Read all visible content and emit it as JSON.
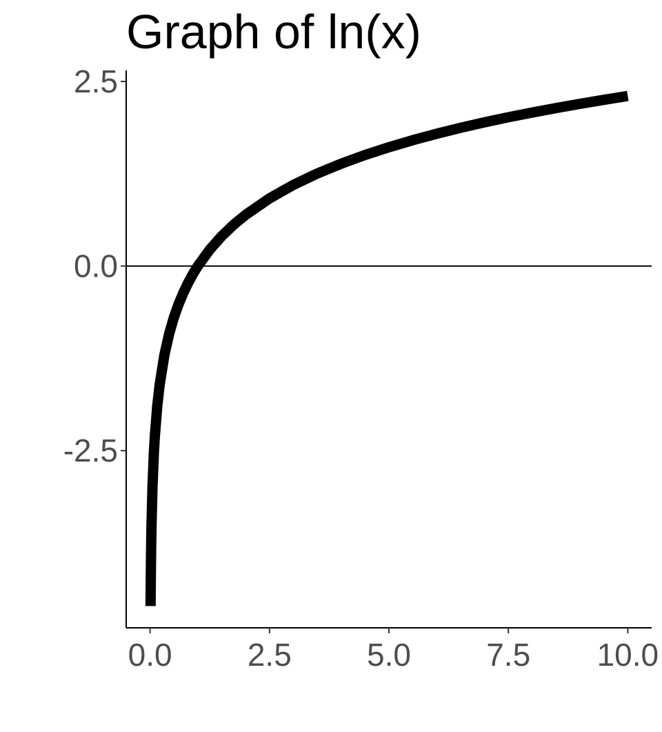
{
  "chart_data": {
    "type": "line",
    "title": "Graph of ln(x)",
    "xlabel": "",
    "ylabel": "",
    "xlim": [
      -0.5,
      10.5
    ],
    "ylim": [
      -4.9,
      2.65
    ],
    "x_ticks": [
      0.0,
      2.5,
      5.0,
      7.5,
      10.0
    ],
    "x_tick_labels": [
      "0.0",
      "2.5",
      "5.0",
      "7.5",
      "10.0"
    ],
    "y_ticks": [
      -2.5,
      0.0,
      2.5
    ],
    "y_tick_labels": [
      "-2.5",
      "0.0",
      "2.5"
    ],
    "grid": false,
    "reference_line": {
      "y": 0.0
    },
    "series": [
      {
        "color": "#000000",
        "x": [
          0.01,
          0.02,
          0.03,
          0.05,
          0.08,
          0.1,
          0.15,
          0.2,
          0.3,
          0.4,
          0.5,
          0.6,
          0.7,
          0.8,
          0.9,
          1.0,
          1.25,
          1.5,
          1.75,
          2.0,
          2.5,
          3.0,
          3.5,
          4.0,
          4.5,
          5.0,
          5.5,
          6.0,
          6.5,
          7.0,
          7.5,
          8.0,
          8.5,
          9.0,
          9.5,
          10.0
        ],
        "y": [
          -4.605,
          -3.912,
          -3.507,
          -2.996,
          -2.526,
          -2.303,
          -1.897,
          -1.609,
          -1.204,
          -0.916,
          -0.693,
          -0.511,
          -0.357,
          -0.223,
          -0.105,
          0.0,
          0.223,
          0.405,
          0.56,
          0.693,
          0.916,
          1.099,
          1.253,
          1.386,
          1.504,
          1.609,
          1.705,
          1.792,
          1.872,
          1.946,
          2.015,
          2.079,
          2.14,
          2.197,
          2.251,
          2.303
        ]
      }
    ]
  }
}
